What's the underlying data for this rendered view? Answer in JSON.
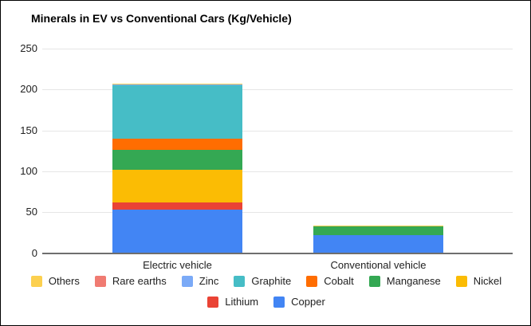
{
  "title": "Minerals in EV vs Conventional Cars (Kg/Vehicle)",
  "chart_data": {
    "type": "bar",
    "subtype": "stacked-vertical",
    "title": "Minerals in EV vs Conventional Cars (Kg/Vehicle)",
    "categories": [
      "Electric vehicle",
      "Conventional vehicle"
    ],
    "series": [
      {
        "name": "Copper",
        "color": "#4285F4",
        "values": [
          53.2,
          22.3
        ]
      },
      {
        "name": "Lithium",
        "color": "#EA4335",
        "values": [
          8.9,
          0
        ]
      },
      {
        "name": "Nickel",
        "color": "#FBBC04",
        "values": [
          39.9,
          0
        ]
      },
      {
        "name": "Manganese",
        "color": "#34A853",
        "values": [
          24.5,
          11.2
        ]
      },
      {
        "name": "Cobalt",
        "color": "#FF6D01",
        "values": [
          13.3,
          0
        ]
      },
      {
        "name": "Graphite",
        "color": "#46BDC6",
        "values": [
          66.3,
          0
        ]
      },
      {
        "name": "Zinc",
        "color": "#7BAAF7",
        "values": [
          0.1,
          0.1
        ]
      },
      {
        "name": "Rare earths",
        "color": "#F07B72",
        "values": [
          0.5,
          0
        ]
      },
      {
        "name": "Others",
        "color": "#FCD04F",
        "values": [
          0.3,
          0.3
        ]
      }
    ],
    "totals": [
      207.0,
      33.9
    ],
    "xlabel": "",
    "ylabel": "",
    "ylim": [
      0,
      250
    ],
    "yticks": [
      0,
      50,
      100,
      150,
      200,
      250
    ],
    "grid": true,
    "legend_position": "bottom",
    "legend_rows": [
      [
        "Others",
        "Rare earths",
        "Zinc",
        "Graphite",
        "Cobalt",
        "Manganese",
        "Nickel"
      ],
      [
        "Lithium",
        "Copper"
      ]
    ]
  }
}
